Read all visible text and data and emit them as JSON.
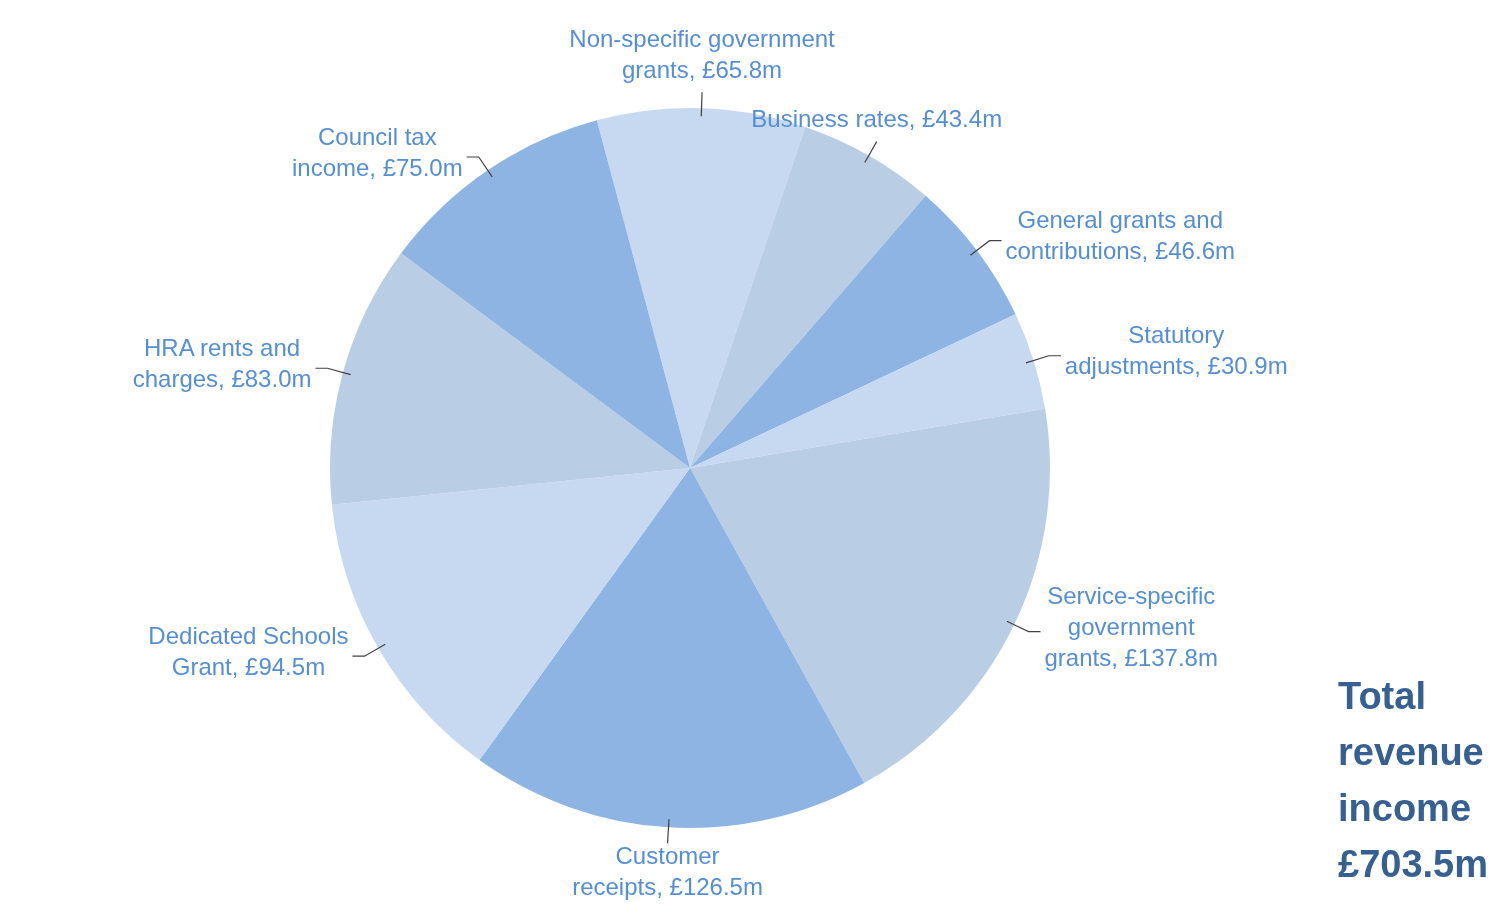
{
  "chart_data": {
    "type": "pie",
    "categories": [
      "Non-specific government grants",
      "Business rates",
      "General grants and contributions",
      "Statutory adjustments",
      "Service-specific government grants",
      "Customer receipts",
      "Dedicated Schools Grant",
      "HRA rents and charges",
      "Council tax income"
    ],
    "values": [
      65.8,
      43.4,
      46.6,
      30.9,
      137.8,
      126.5,
      94.5,
      83.0,
      75.0
    ],
    "value_labels": [
      "£65.8m",
      "£43.4m",
      "£46.6m",
      "£30.9m",
      "£137.8m",
      "£126.5m",
      "£94.5m",
      "£83.0m",
      "£75.0m"
    ],
    "colors": [
      "#c6d9f1",
      "#b9cde5",
      "#8eb4e3",
      "#c6d9f1",
      "#b9cde5",
      "#8eb4e3",
      "#c6d9f1",
      "#b9cde5",
      "#8eb4e3"
    ],
    "annotations": [
      "Total revenue income £703.5m"
    ],
    "legend": false
  }
}
